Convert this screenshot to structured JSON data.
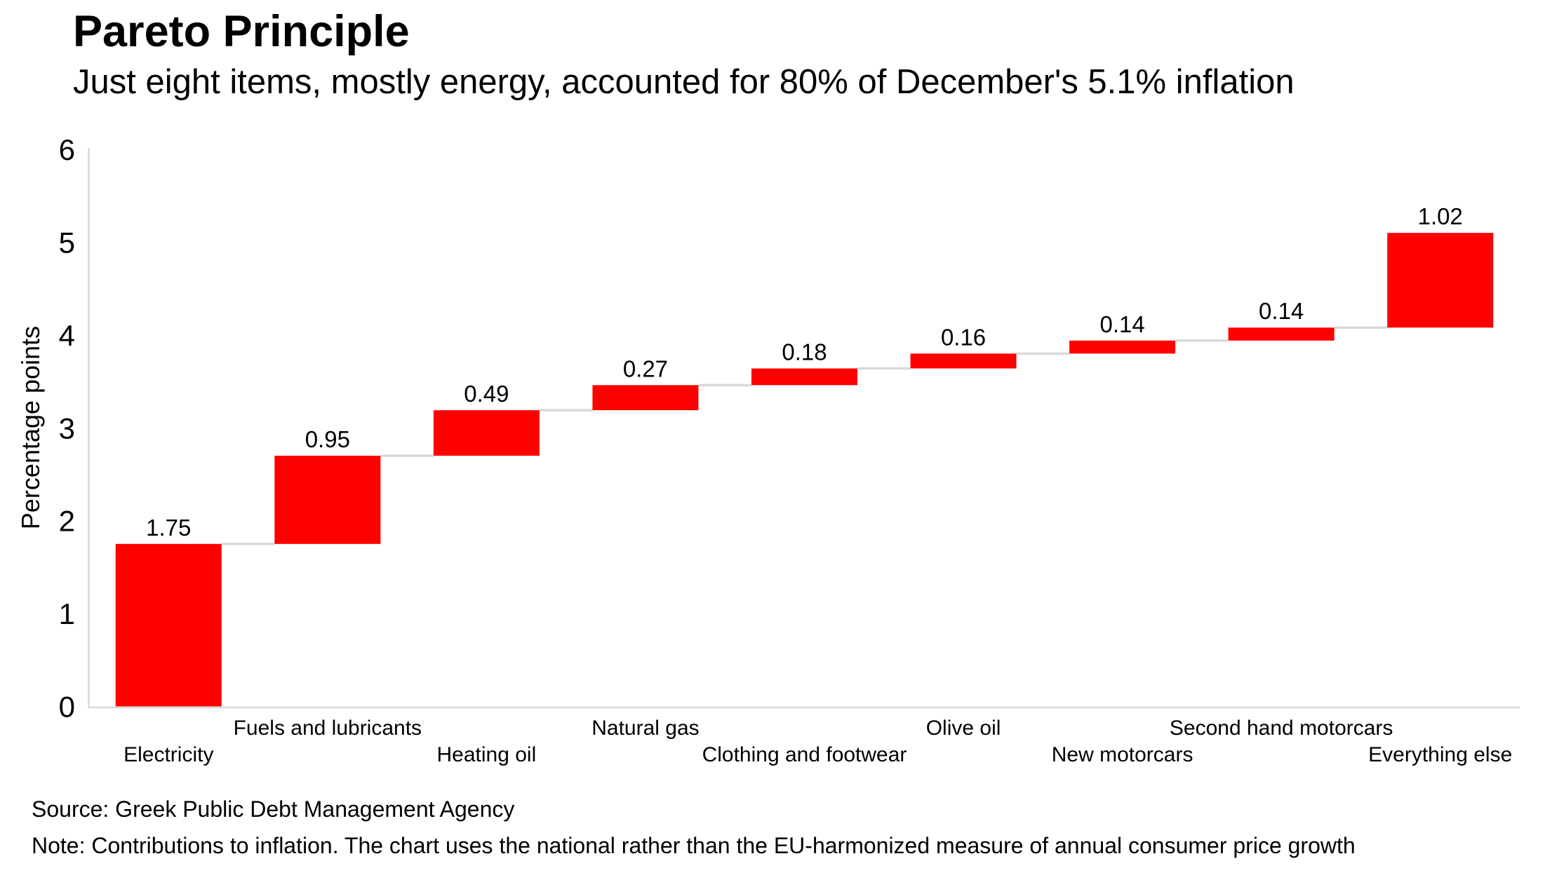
{
  "header": {
    "title": "Pareto Principle",
    "subtitle": "Just eight items, mostly energy, accounted for 80% of December's 5.1% inflation"
  },
  "chart_data": {
    "type": "bar",
    "subtype": "waterfall",
    "title": "Pareto Principle",
    "subtitle": "Just eight items, mostly energy, accounted for 80% of December's 5.1% inflation",
    "categories": [
      "Electricity",
      "Fuels and lubricants",
      "Heating oil",
      "Natural gas",
      "Clothing and footwear",
      "Olive oil",
      "New motorcars",
      "Second hand motorcars",
      "Everything else"
    ],
    "values": [
      1.75,
      0.95,
      0.49,
      0.27,
      0.18,
      0.16,
      0.14,
      0.14,
      1.02
    ],
    "value_labels": [
      "1.75",
      "0.95",
      "0.49",
      "0.27",
      "0.18",
      "0.16",
      "0.14",
      "0.14",
      "1.02"
    ],
    "cumulative_totals": [
      1.75,
      2.7,
      3.19,
      3.46,
      3.64,
      3.8,
      3.94,
      4.08,
      5.1
    ],
    "xlabel": "",
    "ylabel": "Percentage points",
    "ylim": [
      0,
      6
    ],
    "yticks": [
      0,
      1,
      2,
      3,
      4,
      5,
      6
    ],
    "grid": false,
    "legend": "none",
    "x_label_rows": "staggered",
    "colors": {
      "bar": "#FF0000",
      "connector": "#D9D9D9",
      "axis": "#D9D9D9",
      "text": "#000000",
      "background": "#FFFFFF"
    }
  },
  "footer": {
    "source": "Source: Greek Public Debt Management Agency",
    "note": "Note: Contributions to inflation. The chart uses the national rather than the EU-harmonized measure of annual consumer price growth"
  }
}
